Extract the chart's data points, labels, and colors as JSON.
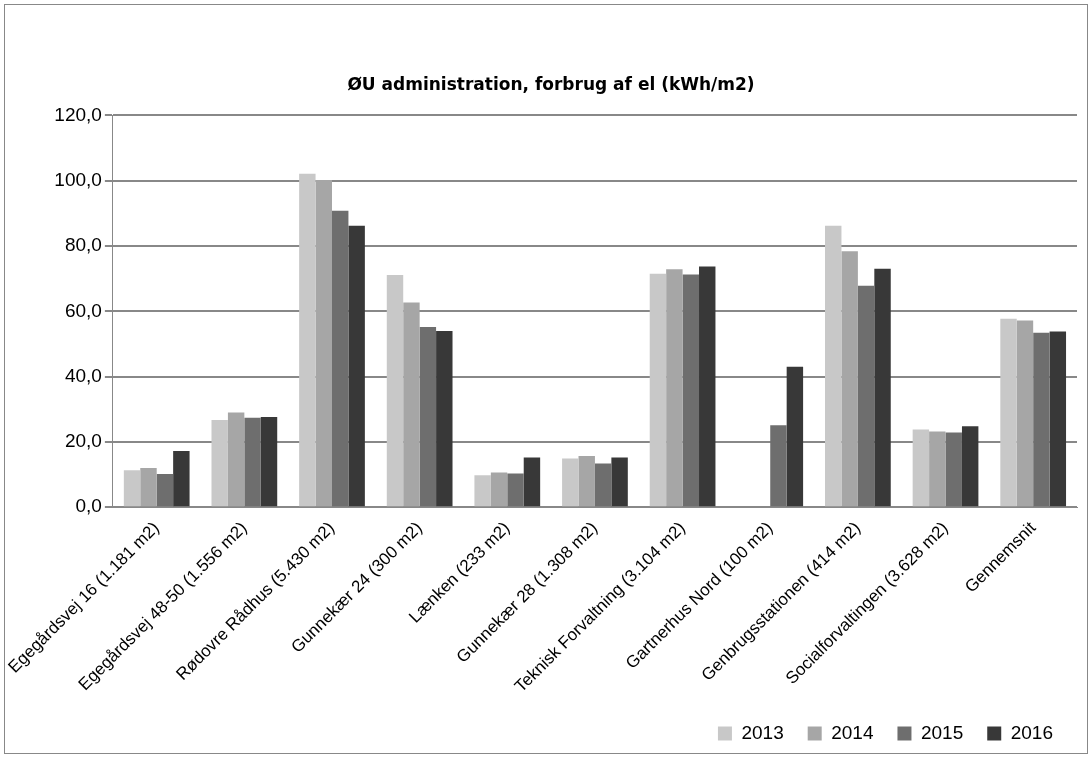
{
  "chart_data": {
    "type": "bar",
    "title": "ØU administration, forbrug af el (kWh/m2)",
    "categories": [
      "Egegårdsvej 16 (1.181 m2)",
      "Egegårdsvej 48-50 (1.556 m2)",
      "Rødovre Rådhus (5.430 m2)",
      "Gunnekær 24 (300 m2)",
      "Lænken (233 m2)",
      "Gunnekær 28 (1.308 m2)",
      "Teknisk Forvaltning (3.104 m2)",
      "Gartnerhus Nord (100 m2)",
      "Genbrugsstationen (414 m2)",
      "Socialforvaltingen (3.628 m2)",
      "Gennemsnit"
    ],
    "series": [
      {
        "name": "2013",
        "color": "#c8c8c8",
        "values": [
          11.3,
          26.7,
          102.1,
          71.1,
          9.8,
          14.9,
          71.5,
          null,
          86.2,
          23.8,
          57.7
        ]
      },
      {
        "name": "2014",
        "color": "#a6a6a6",
        "values": [
          12.0,
          29.0,
          100.2,
          62.7,
          10.6,
          15.7,
          72.9,
          null,
          78.4,
          23.2,
          57.2
        ]
      },
      {
        "name": "2015",
        "color": "#6e6e6e",
        "values": [
          10.2,
          27.4,
          90.8,
          55.2,
          10.3,
          13.4,
          71.3,
          25.1,
          67.8,
          22.9,
          53.4
        ]
      },
      {
        "name": "2016",
        "color": "#383838",
        "values": [
          17.2,
          27.6,
          86.2,
          54.0,
          15.2,
          15.2,
          73.7,
          43.0,
          73.0,
          24.8,
          53.8
        ]
      }
    ],
    "ylim": [
      0,
      120
    ],
    "yticks": [
      {
        "value": 0,
        "label": "0,0"
      },
      {
        "value": 20,
        "label": "20,0"
      },
      {
        "value": 40,
        "label": "40,0"
      },
      {
        "value": 60,
        "label": "60,0"
      },
      {
        "value": 80,
        "label": "80,0"
      },
      {
        "value": 100,
        "label": "100,0"
      },
      {
        "value": 120,
        "label": "120,0"
      }
    ],
    "grid": "y",
    "legend": "bottom right"
  }
}
